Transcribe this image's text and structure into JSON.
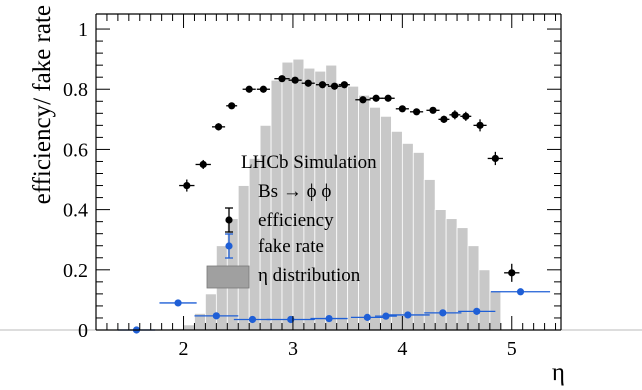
{
  "chart_data": {
    "type": "scatter",
    "xlabel": "η",
    "ylabel": "efficiency/ fake rate",
    "xlim": [
      1.2,
      5.45
    ],
    "ylim": [
      0,
      1.05
    ],
    "x_ticks": [
      "2",
      "3",
      "4",
      "5"
    ],
    "y_ticks": [
      "0",
      "0.2",
      "0.4",
      "0.6",
      "0.8",
      "1"
    ],
    "annotations": [
      "LHCb Simulation",
      "Bs → ϕ ϕ"
    ],
    "legend": {
      "placement": "center-left",
      "entries": [
        "efficiency",
        "fake rate",
        "η distribution"
      ]
    },
    "eta_distribution": {
      "bin_edges": [
        1.8,
        1.9,
        2.0,
        2.1,
        2.2,
        2.3,
        2.4,
        2.5,
        2.6,
        2.7,
        2.8,
        2.9,
        3.0,
        3.1,
        3.2,
        3.3,
        3.4,
        3.5,
        3.6,
        3.7,
        3.8,
        3.9,
        4.0,
        4.1,
        4.2,
        4.3,
        4.4,
        4.5,
        4.6,
        4.7,
        4.8,
        4.9
      ],
      "values": [
        0.003,
        0.005,
        0.017,
        0.055,
        0.12,
        0.28,
        0.37,
        0.48,
        0.57,
        0.68,
        0.83,
        0.89,
        0.9,
        0.87,
        0.86,
        0.88,
        0.82,
        0.81,
        0.78,
        0.74,
        0.71,
        0.66,
        0.62,
        0.59,
        0.5,
        0.4,
        0.37,
        0.34,
        0.28,
        0.2,
        0.13
      ],
      "color": "#c8c8c8"
    },
    "series": [
      {
        "name": "efficiency",
        "color": "#000000",
        "x": [
          2.03,
          2.18,
          2.32,
          2.44,
          2.6,
          2.73,
          2.9,
          3.02,
          3.14,
          3.27,
          3.38,
          3.47,
          3.64,
          3.76,
          3.87,
          4.0,
          4.13,
          4.28,
          4.38,
          4.48,
          4.58,
          4.71,
          4.85,
          5.0
        ],
        "y": [
          0.48,
          0.55,
          0.675,
          0.745,
          0.8,
          0.8,
          0.835,
          0.83,
          0.82,
          0.815,
          0.81,
          0.815,
          0.765,
          0.77,
          0.77,
          0.735,
          0.725,
          0.73,
          0.7,
          0.715,
          0.71,
          0.68,
          0.57,
          0.19
        ],
        "y_err": [
          0.02,
          0.015,
          0.012,
          0.01,
          0.008,
          0.008,
          0.008,
          0.008,
          0.008,
          0.008,
          0.008,
          0.008,
          0.008,
          0.008,
          0.008,
          0.008,
          0.01,
          0.01,
          0.012,
          0.015,
          0.015,
          0.02,
          0.022,
          0.03
        ],
        "x_err": [
          0.07,
          0.07,
          0.06,
          0.05,
          0.06,
          0.06,
          0.07,
          0.06,
          0.06,
          0.06,
          0.06,
          0.05,
          0.07,
          0.06,
          0.06,
          0.06,
          0.06,
          0.06,
          0.05,
          0.05,
          0.05,
          0.06,
          0.07,
          0.07
        ]
      },
      {
        "name": "fake rate",
        "color": "#1f5fd6",
        "x": [
          1.57,
          1.95,
          2.3,
          2.63,
          2.98,
          3.33,
          3.68,
          3.85,
          4.05,
          4.37,
          4.68,
          5.08
        ],
        "y": [
          0.0,
          0.09,
          0.047,
          0.035,
          0.035,
          0.038,
          0.042,
          0.046,
          0.05,
          0.057,
          0.062,
          0.127
        ],
        "x_err": [
          0.17,
          0.17,
          0.2,
          0.17,
          0.22,
          0.17,
          0.15,
          0.1,
          0.2,
          0.17,
          0.17,
          0.27
        ]
      }
    ]
  }
}
